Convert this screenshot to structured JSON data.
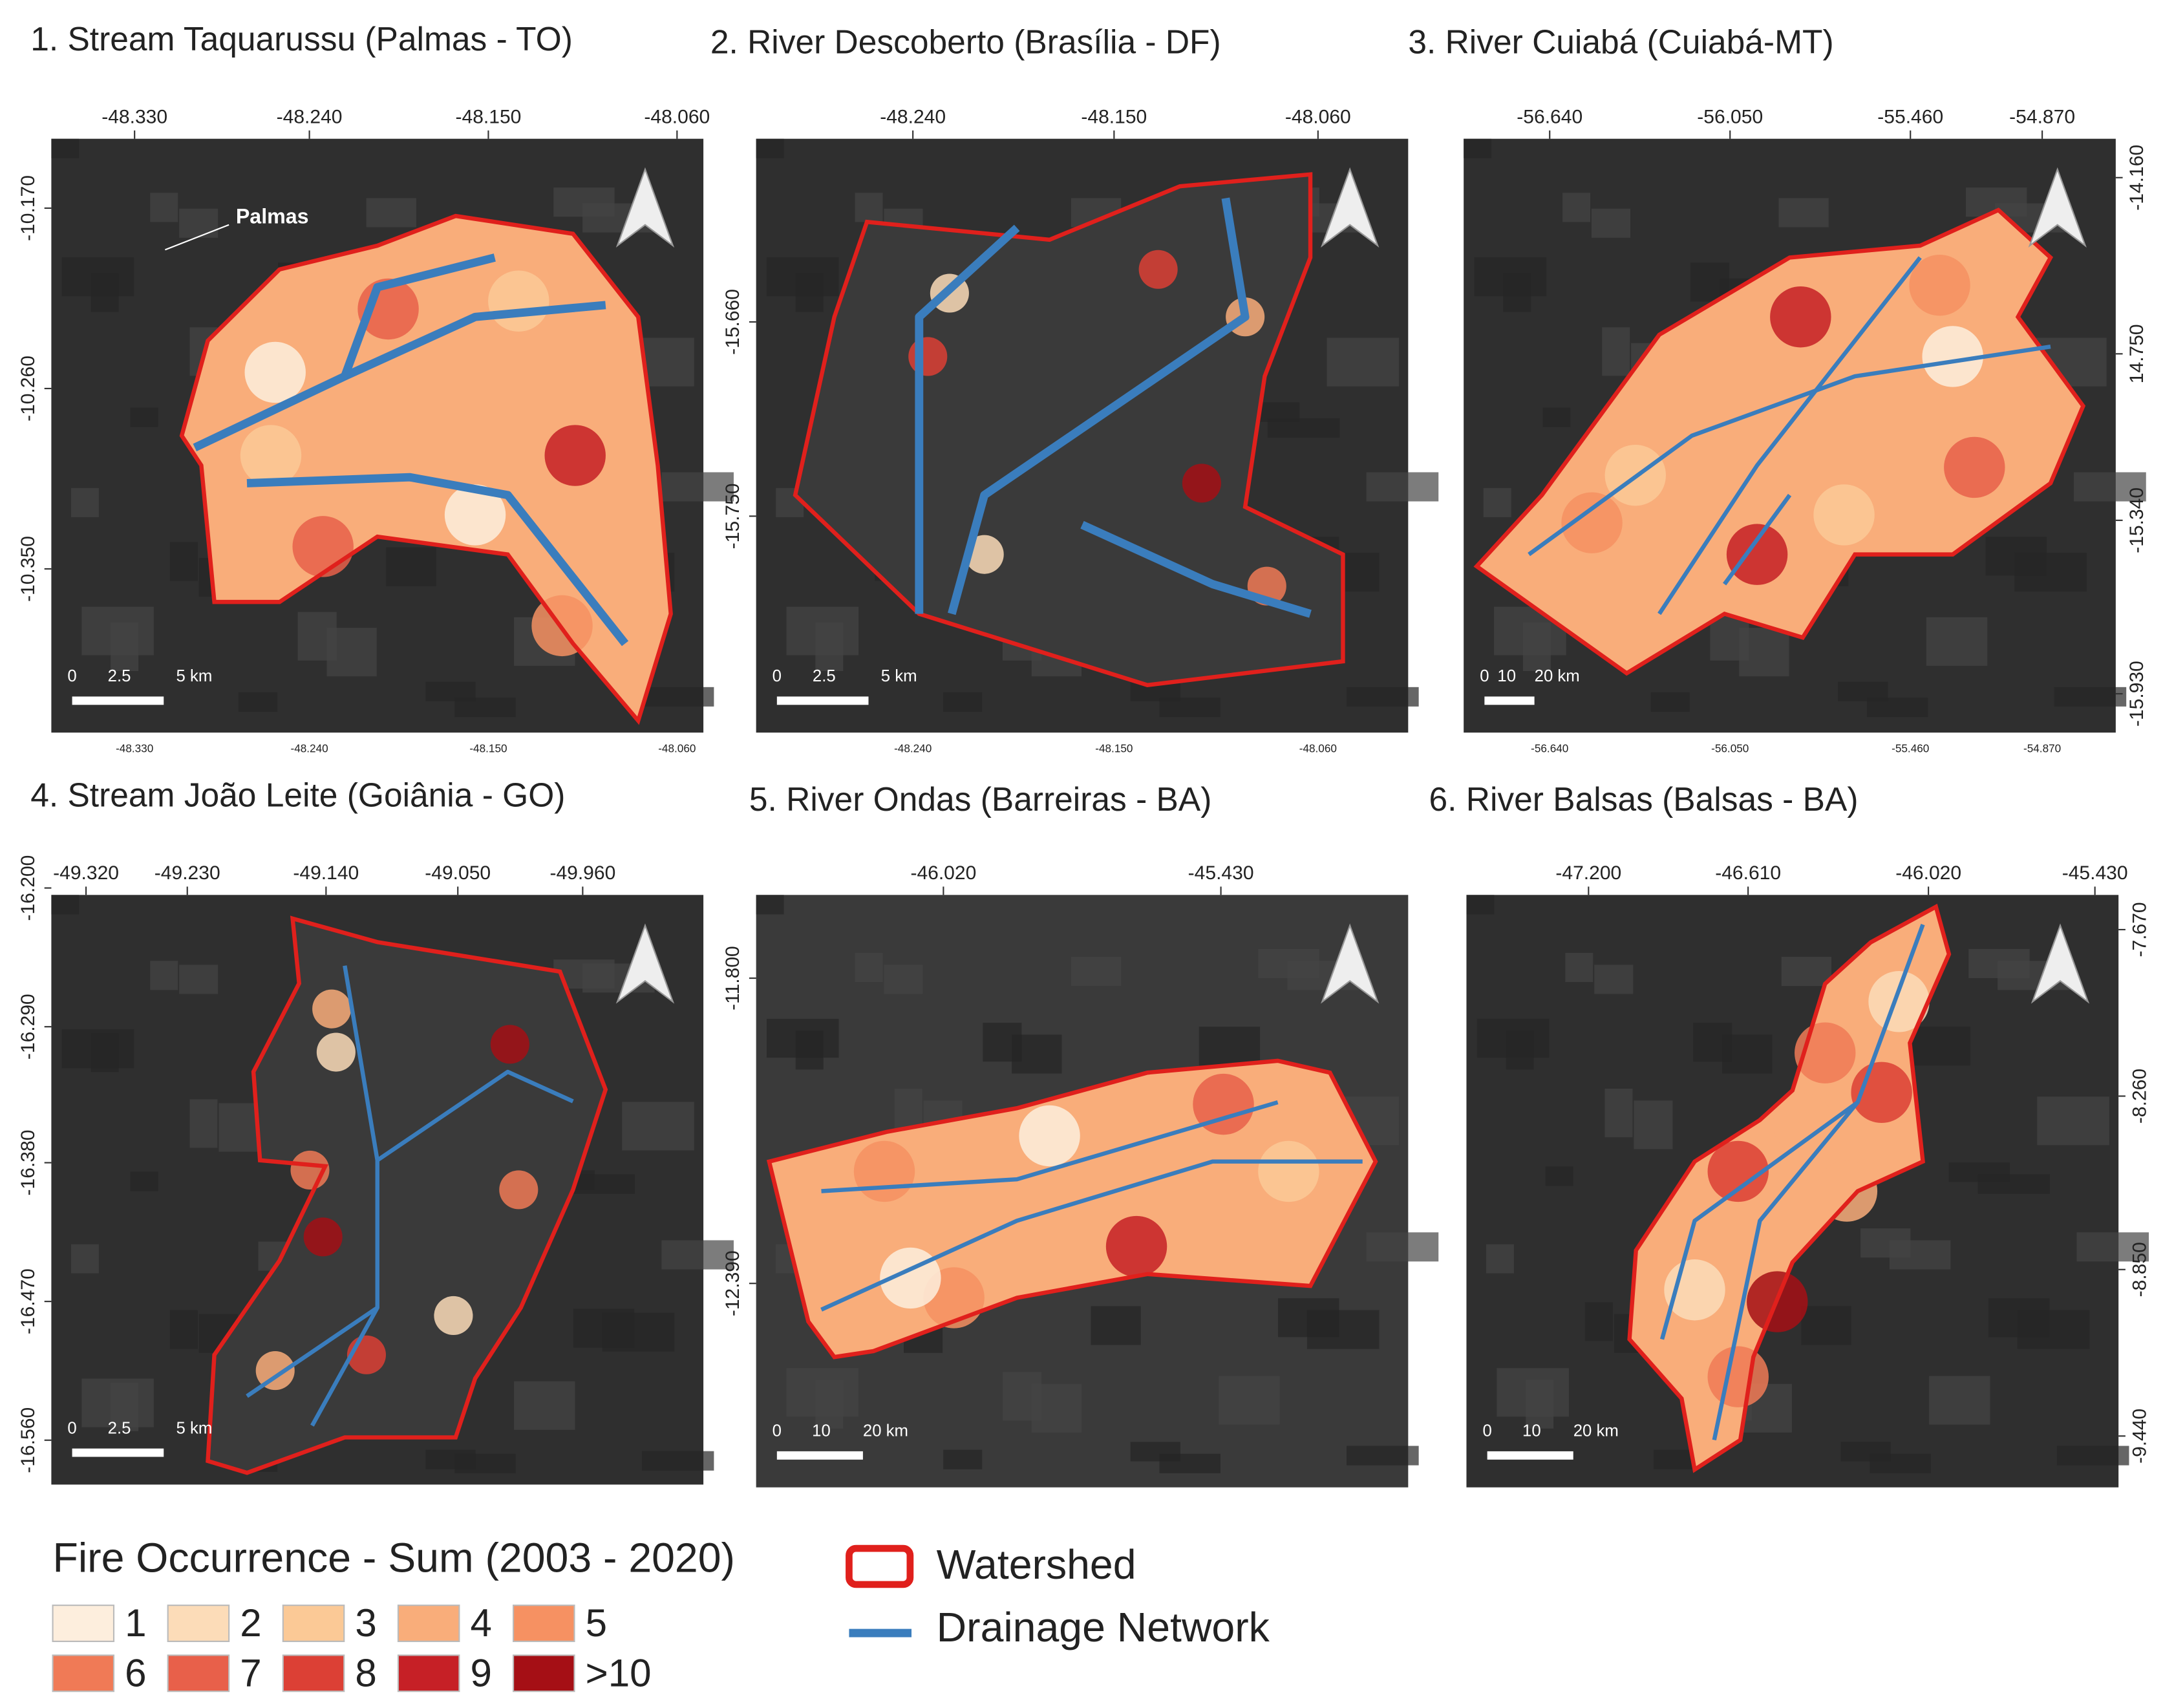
{
  "panels": [
    {
      "title": "1. Stream Taquarussu (Palmas - TO)",
      "side_axis": "left",
      "top_ticks": [
        "-48.330",
        "-48.240",
        "-48.150",
        "-48.060"
      ],
      "side_ticks": [
        "-10.170",
        "-10.260",
        "-10.350"
      ],
      "bottom_ticks": [
        "-48.330",
        "-48.240",
        "-48.150",
        "-48.060"
      ],
      "scale_bar": [
        "0",
        "2.5",
        "5 km"
      ],
      "place_label": "Palmas"
    },
    {
      "title": "2. River Descoberto (Brasília - DF)",
      "side_axis": "left",
      "top_ticks": [
        "-48.240",
        "-48.150",
        "-48.060"
      ],
      "side_ticks": [
        "-15.660",
        "-15.750"
      ],
      "bottom_ticks": [
        "-48.240",
        "-48.150",
        "-48.060"
      ],
      "scale_bar": [
        "0",
        "2.5",
        "5 km"
      ]
    },
    {
      "title": "3. River Cuiabá (Cuiabá-MT)",
      "side_axis": "right",
      "top_ticks": [
        "-56.640",
        "-56.050",
        "-55.460",
        "-54.870"
      ],
      "side_ticks": [
        "-14.160",
        "14.750",
        "-15.340",
        "-15.930"
      ],
      "bottom_ticks": [
        "-56.640",
        "-56.050",
        "-55.460",
        "-54.870"
      ],
      "scale_bar": [
        "0",
        "10",
        "20 km"
      ]
    },
    {
      "title": "4. Stream João Leite (Goiânia - GO)",
      "side_axis": "left",
      "top_ticks": [
        "-49.320",
        "-49.230",
        "-49.140",
        "-49.050",
        "-49.960"
      ],
      "side_ticks": [
        "-16.200",
        "-16.290",
        "-16.380",
        "-16.470",
        "-16.560"
      ],
      "scale_bar": [
        "0",
        "2.5",
        "5 km"
      ]
    },
    {
      "title": "5. River Ondas (Barreiras - BA)",
      "side_axis": "left",
      "top_ticks": [
        "-46.020",
        "-45.430"
      ],
      "side_ticks": [
        "-11.800",
        "-12.390"
      ],
      "scale_bar": [
        "0",
        "10",
        "20 km"
      ]
    },
    {
      "title": "6. River Balsas (Balsas - BA)",
      "side_axis": "right",
      "top_ticks": [
        "-47.200",
        "-46.610",
        "-46.020",
        "-45.430"
      ],
      "side_ticks": [
        "-7.670",
        "-8.260",
        "-8.850",
        "-9.440"
      ],
      "scale_bar": [
        "0",
        "10",
        "20 km"
      ]
    }
  ],
  "legend": {
    "title": "Fire Occurrence - Sum (2003 - 2020)",
    "classes": [
      {
        "label": "1",
        "color": "#fdeedd"
      },
      {
        "label": "2",
        "color": "#fcdcb8"
      },
      {
        "label": "3",
        "color": "#fbc996"
      },
      {
        "label": "4",
        "color": "#f9ad7a"
      },
      {
        "label": "5",
        "color": "#f69162"
      },
      {
        "label": "6",
        "color": "#f07a56"
      },
      {
        "label": "7",
        "color": "#e8604a"
      },
      {
        "label": "8",
        "color": "#dc4035"
      },
      {
        "label": "9",
        "color": "#c62026"
      },
      {
        "label": ">10",
        "color": "#a50f15"
      }
    ],
    "watershed": "Watershed",
    "drainage": "Drainage Network"
  }
}
